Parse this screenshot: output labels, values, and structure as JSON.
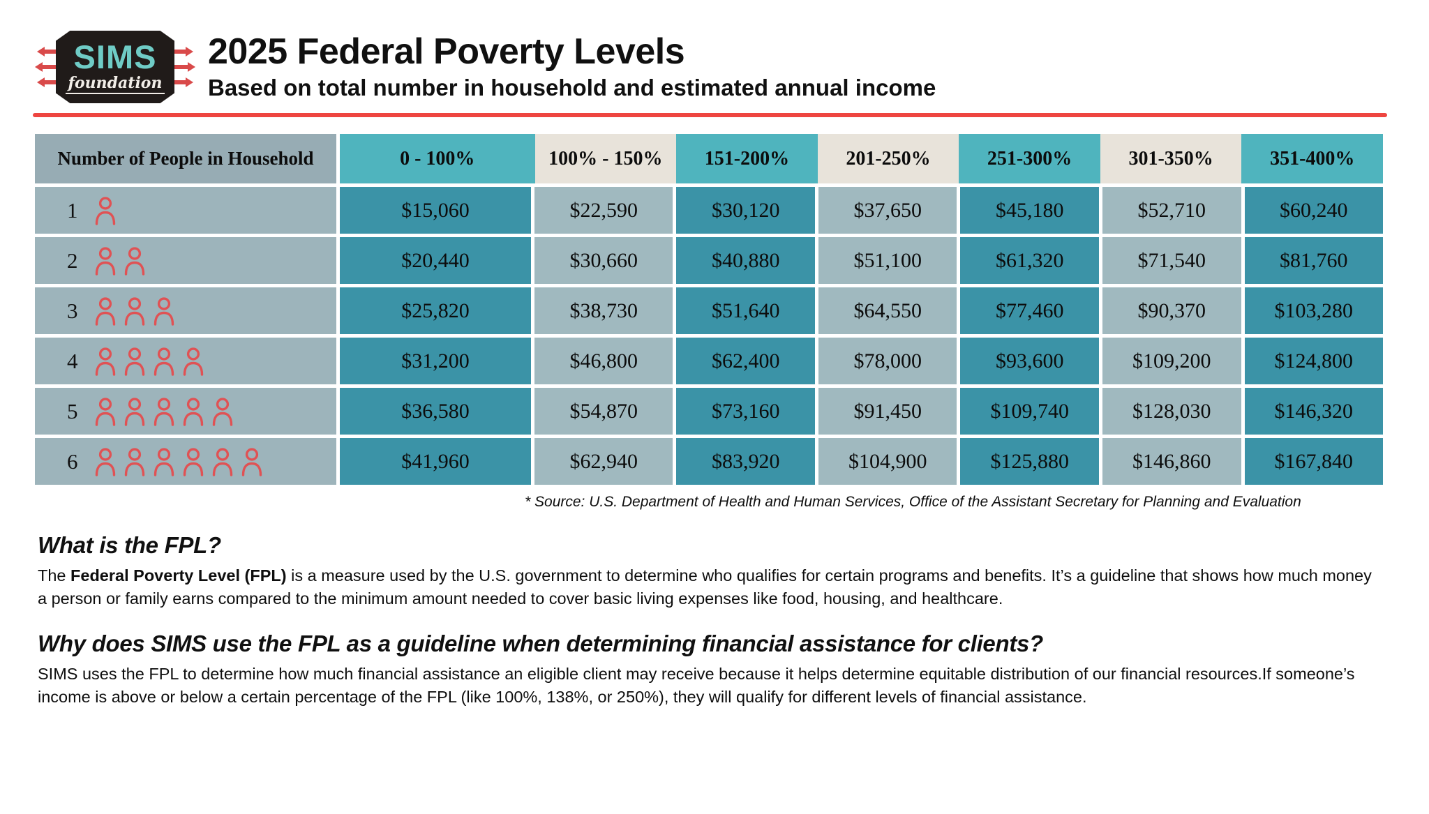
{
  "logo": {
    "brand": "SIMS",
    "brand_sub": "foundation"
  },
  "header": {
    "title": "2025 Federal Poverty Levels",
    "subtitle": "Based on total number in household and estimated annual income"
  },
  "table": {
    "col0_header": "Number of People in Household",
    "columns": [
      "0 - 100%",
      "100% - 150%",
      "151-200%",
      "201-250%",
      "251-300%",
      "301-350%",
      "351-400%"
    ],
    "rows": [
      {
        "people": 1,
        "values": [
          "$15,060",
          "$22,590",
          "$30,120",
          "$37,650",
          "$45,180",
          "$52,710",
          "$60,240"
        ]
      },
      {
        "people": 2,
        "values": [
          "$20,440",
          "$30,660",
          "$40,880",
          "$51,100",
          "$61,320",
          "$71,540",
          "$81,760"
        ]
      },
      {
        "people": 3,
        "values": [
          "$25,820",
          "$38,730",
          "$51,640",
          "$64,550",
          "$77,460",
          "$90,370",
          "$103,280"
        ]
      },
      {
        "people": 4,
        "values": [
          "$31,200",
          "$46,800",
          "$62,400",
          "$78,000",
          "$93,600",
          "$109,200",
          "$124,800"
        ]
      },
      {
        "people": 5,
        "values": [
          "$36,580",
          "$54,870",
          "$73,160",
          "$91,450",
          "$109,740",
          "$128,030",
          "$146,320"
        ]
      },
      {
        "people": 6,
        "values": [
          "$41,960",
          "$62,940",
          "$83,920",
          "$104,900",
          "$125,880",
          "$146,860",
          "$167,840"
        ]
      }
    ],
    "source_note": "* Source: U.S. Department of Health and Human Services, Office of the Assistant Secretary for Planning and Evaluation"
  },
  "sections": [
    {
      "heading": "What is the FPL?",
      "body_prefix": "The ",
      "body_bold": "Federal Poverty Level (FPL)",
      "body_rest": " is a measure used by the U.S. government to determine who qualifies for certain programs and benefits. It’s a guideline that shows how much money a person or family earns compared to the minimum amount needed to cover basic living expenses like food, housing, and healthcare."
    },
    {
      "heading": "Why does SIMS use the FPL as a guideline when determining financial assistance for clients?",
      "body": "SIMS uses the FPL to determine how much financial assistance an eligible client may receive because it helps determine equitable distribution of our financial resources.If someone’s income is above or below a certain percentage of the FPL (like 100%, 138%, or 250%), they will qualify for different levels of financial assistance."
    }
  ],
  "icons": {
    "person": "person-outline-icon",
    "speed_lines": "speed-lines-icon"
  },
  "colors": {
    "accent_red": "#ee4540",
    "logo_black": "#201b19",
    "logo_teal": "#6fccc6",
    "header_teal": "#4fb4be",
    "header_cream": "#e8e3da",
    "header_gray": "#97acb4",
    "row_label_gray": "#9db4bb",
    "cell_teal": "#3b93a7",
    "cell_gray": "#a0b9bf",
    "person_red": "#e05254"
  }
}
